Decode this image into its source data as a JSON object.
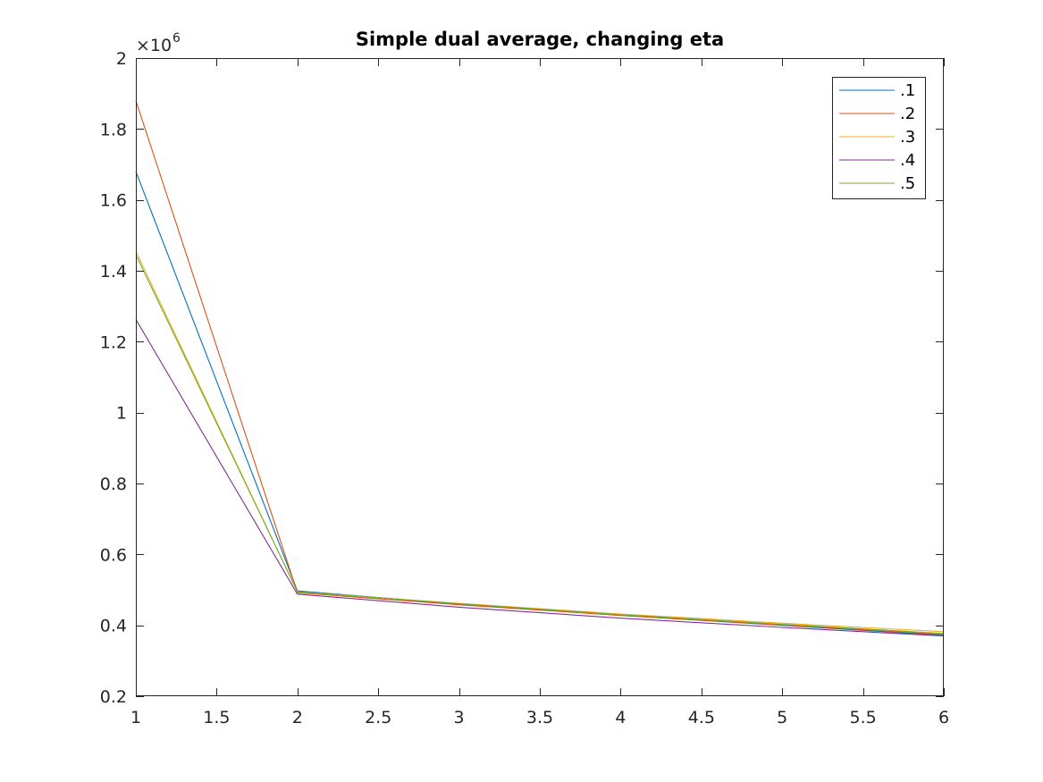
{
  "chart_data": {
    "type": "line",
    "title": "Simple dual average, changing eta",
    "xlabel": "",
    "ylabel": "",
    "y_exponent_label": "×10",
    "y_exponent_power": "6",
    "y_multiplier": 1000000,
    "xlim": [
      1,
      6
    ],
    "ylim": [
      0.2,
      2.0
    ],
    "x_ticks": [
      1,
      1.5,
      2,
      2.5,
      3,
      3.5,
      4,
      4.5,
      5,
      5.5,
      6
    ],
    "x_tick_labels": [
      "1",
      "1.5",
      "2",
      "2.5",
      "3",
      "3.5",
      "4",
      "4.5",
      "5",
      "5.5",
      "6"
    ],
    "y_ticks": [
      0.2,
      0.4,
      0.6,
      0.8,
      1.0,
      1.2,
      1.4,
      1.6,
      1.8,
      2.0
    ],
    "y_tick_labels": [
      "0.2",
      "0.4",
      "0.6",
      "0.8",
      "1",
      "1.2",
      "1.4",
      "1.6",
      "1.8",
      "2"
    ],
    "grid": false,
    "legend_position": "top-right",
    "x": [
      1,
      2,
      3,
      4,
      5,
      6
    ],
    "series": [
      {
        "name": ".1",
        "color": "#0072BD",
        "values": [
          1.68,
          0.497,
          0.46,
          0.428,
          0.4,
          0.372
        ]
      },
      {
        "name": ".2",
        "color": "#D95319",
        "values": [
          1.88,
          0.492,
          0.458,
          0.428,
          0.401,
          0.374
        ]
      },
      {
        "name": ".3",
        "color": "#EDB120",
        "values": [
          1.455,
          0.494,
          0.462,
          0.432,
          0.406,
          0.382
        ]
      },
      {
        "name": ".4",
        "color": "#7E2F8E",
        "values": [
          1.263,
          0.488,
          0.451,
          0.42,
          0.394,
          0.37
        ]
      },
      {
        "name": ".5",
        "color": "#77AC30",
        "values": [
          1.445,
          0.495,
          0.461,
          0.43,
          0.403,
          0.377
        ]
      }
    ]
  }
}
